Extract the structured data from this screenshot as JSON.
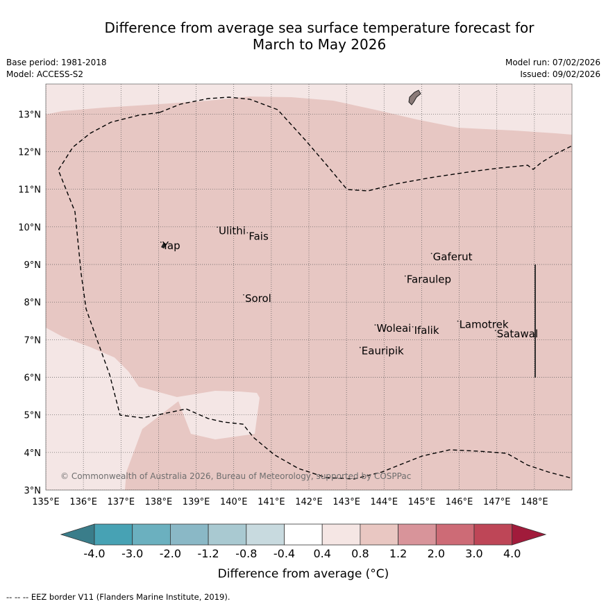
{
  "title": {
    "line1": "Difference from average sea surface temperature forecast for",
    "line2": "March to May 2026"
  },
  "meta": {
    "base_period": "Base period: 1981-2018",
    "model": "Model: ACCESS-S2",
    "model_run": "Model run: 07/02/2026",
    "issued": "Issued: 09/02/2026"
  },
  "map": {
    "lon_range": [
      135,
      149
    ],
    "lat_range": [
      3,
      13.8
    ],
    "lon_ticks": [
      "135°E",
      "136°E",
      "137°E",
      "138°E",
      "139°E",
      "140°E",
      "141°E",
      "142°E",
      "143°E",
      "144°E",
      "145°E",
      "146°E",
      "147°E",
      "148°E"
    ],
    "lat_ticks": [
      "3°N",
      "4°N",
      "5°N",
      "6°N",
      "7°N",
      "8°N",
      "9°N",
      "10°N",
      "11°N",
      "12°N",
      "13°N"
    ],
    "places": [
      {
        "name": "Yap",
        "lon": 138.1,
        "lat": 9.5
      },
      {
        "name": "Ulithi",
        "lon": 139.6,
        "lat": 9.9
      },
      {
        "name": "Fais",
        "lon": 140.4,
        "lat": 9.75
      },
      {
        "name": "Sorol",
        "lon": 140.3,
        "lat": 8.1
      },
      {
        "name": "Gaferut",
        "lon": 145.3,
        "lat": 9.2
      },
      {
        "name": "Faraulep",
        "lon": 144.6,
        "lat": 8.6
      },
      {
        "name": "Lamotrek",
        "lon": 146.0,
        "lat": 7.4
      },
      {
        "name": "Woleai",
        "lon": 143.8,
        "lat": 7.3
      },
      {
        "name": "Ifalik",
        "lon": 144.8,
        "lat": 7.25
      },
      {
        "name": "Satawal",
        "lon": 147.0,
        "lat": 7.15
      },
      {
        "name": "Eauripik",
        "lon": 143.4,
        "lat": 6.7
      }
    ],
    "copyright": "© Commonwealth of Australia 2026, Bureau of Meteorology, supported by COSPPac"
  },
  "colorbar": {
    "label": "Difference from average (°C)",
    "ticks": [
      "-4.0",
      "-3.0",
      "-2.0",
      "-1.2",
      "-0.8",
      "-0.4",
      "0.4",
      "0.8",
      "1.2",
      "2.0",
      "3.0",
      "4.0"
    ],
    "colors": [
      "#3a7d8a",
      "#47a2b4",
      "#6bb0bf",
      "#8ab8c6",
      "#a9c9d1",
      "#c8dadf",
      "#ffffff",
      "#f5e6e4",
      "#e9c7c2",
      "#d8949a",
      "#cd6b76",
      "#be4657",
      "#a11b3b"
    ]
  },
  "footnote": "--  --  -- EEZ border V11 (Flanders Marine Institute, 2019)."
}
